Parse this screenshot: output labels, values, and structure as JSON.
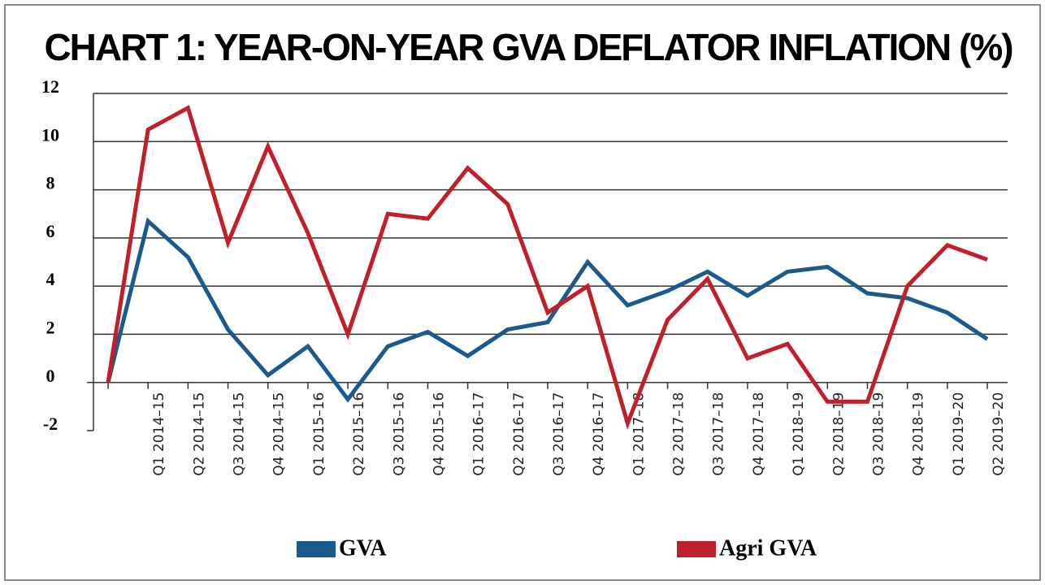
{
  "chart_data": {
    "type": "line",
    "title": "CHART 1: YEAR-ON-YEAR GVA DEFLATOR INFLATION (%)",
    "categories": [
      null,
      "Q1 2014–15",
      "Q2 2014–15",
      "Q3 2014–15",
      "Q4 2014–15",
      "Q1 2015–16",
      "Q2 2015–16",
      "Q3 2015–16",
      "Q4 2015–16",
      "Q1 2016–17",
      "Q2 2016–17",
      "Q3 2016–17",
      "Q4 2016–17",
      "Q1 2017–18",
      "Q2 2017–18",
      "Q3 2017–18",
      "Q4 2017–18",
      "Q1 2018–19",
      "Q2 2018–19",
      "Q3 2018–19",
      "Q4 2018–19",
      "Q1 2019–20",
      "Q2 2019–20"
    ],
    "series": [
      {
        "name": "GVA",
        "color": "#1b5a8c",
        "values": [
          0,
          6.7,
          5.2,
          2.2,
          0.3,
          1.5,
          -0.7,
          1.5,
          2.1,
          1.1,
          2.2,
          2.5,
          5.0,
          3.2,
          3.8,
          4.6,
          3.6,
          4.6,
          4.8,
          3.7,
          3.5,
          2.9,
          1.8
        ]
      },
      {
        "name": "Agri GVA",
        "color": "#c0202a",
        "values": [
          0,
          10.5,
          11.4,
          5.8,
          9.8,
          6.2,
          2.0,
          7.0,
          6.8,
          8.9,
          7.4,
          2.9,
          4.0,
          -1.7,
          2.6,
          4.3,
          1.0,
          1.6,
          -0.8,
          -0.8,
          4.0,
          5.7,
          5.1
        ]
      }
    ],
    "ylim": [
      -2,
      12
    ],
    "yticks": [
      -2,
      0,
      2,
      4,
      6,
      8,
      10,
      12
    ],
    "grid": true
  }
}
